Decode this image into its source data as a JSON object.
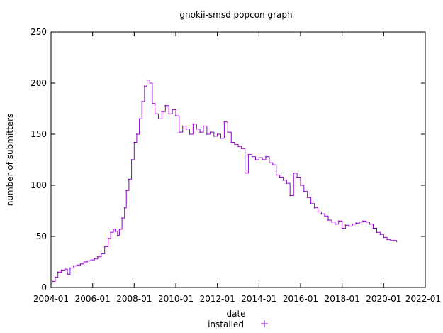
{
  "chart_data": {
    "type": "line",
    "title": "gnokii-smsd popcon graph",
    "xlabel": "date",
    "ylabel": "number of submitters",
    "x_tick_labels": [
      "2004-01",
      "2006-01",
      "2008-01",
      "2010-01",
      "2012-01",
      "2014-01",
      "2016-01",
      "2018-01",
      "2020-01",
      "2022-01"
    ],
    "y_tick_labels": [
      "0",
      "50",
      "100",
      "150",
      "200",
      "250"
    ],
    "xlim": [
      "2004-01-01",
      "2022-01-01"
    ],
    "ylim": [
      0,
      250
    ],
    "grid": false,
    "legend_position": "bottom-center",
    "series": [
      {
        "name": "installed",
        "color": "#9400d3",
        "points": [
          [
            "2004-02-01",
            6
          ],
          [
            "2004-03-15",
            10
          ],
          [
            "2004-05-01",
            15
          ],
          [
            "2004-07-01",
            17
          ],
          [
            "2004-09-01",
            18
          ],
          [
            "2004-10-15",
            13
          ],
          [
            "2004-12-01",
            19
          ],
          [
            "2005-02-01",
            21
          ],
          [
            "2005-04-01",
            22
          ],
          [
            "2005-06-01",
            23
          ],
          [
            "2005-08-01",
            25
          ],
          [
            "2005-10-01",
            26
          ],
          [
            "2005-12-01",
            27
          ],
          [
            "2006-02-01",
            28
          ],
          [
            "2006-04-01",
            30
          ],
          [
            "2006-06-01",
            33
          ],
          [
            "2006-08-01",
            40
          ],
          [
            "2006-10-01",
            48
          ],
          [
            "2006-11-15",
            54
          ],
          [
            "2007-01-01",
            57
          ],
          [
            "2007-02-01",
            55
          ],
          [
            "2007-03-15",
            51
          ],
          [
            "2007-04-15",
            57
          ],
          [
            "2007-06-01",
            68
          ],
          [
            "2007-07-15",
            78
          ],
          [
            "2007-08-15",
            95
          ],
          [
            "2007-10-01",
            106
          ],
          [
            "2007-11-15",
            125
          ],
          [
            "2008-01-01",
            142
          ],
          [
            "2008-02-15",
            150
          ],
          [
            "2008-04-01",
            165
          ],
          [
            "2008-05-15",
            182
          ],
          [
            "2008-07-01",
            197
          ],
          [
            "2008-08-15",
            203
          ],
          [
            "2008-10-01",
            200
          ],
          [
            "2008-11-15",
            180
          ],
          [
            "2009-01-01",
            170
          ],
          [
            "2009-03-01",
            165
          ],
          [
            "2009-05-01",
            172
          ],
          [
            "2009-07-01",
            178
          ],
          [
            "2009-09-01",
            170
          ],
          [
            "2009-11-01",
            174
          ],
          [
            "2010-01-01",
            168
          ],
          [
            "2010-03-01",
            152
          ],
          [
            "2010-05-01",
            158
          ],
          [
            "2010-07-01",
            155
          ],
          [
            "2010-09-01",
            150
          ],
          [
            "2010-11-01",
            160
          ],
          [
            "2011-01-01",
            155
          ],
          [
            "2011-03-01",
            152
          ],
          [
            "2011-05-01",
            158
          ],
          [
            "2011-07-01",
            150
          ],
          [
            "2011-09-01",
            152
          ],
          [
            "2011-11-01",
            148
          ],
          [
            "2012-01-01",
            150
          ],
          [
            "2012-03-01",
            146
          ],
          [
            "2012-05-01",
            162
          ],
          [
            "2012-07-01",
            152
          ],
          [
            "2012-09-01",
            142
          ],
          [
            "2012-11-01",
            140
          ],
          [
            "2013-01-01",
            138
          ],
          [
            "2013-03-01",
            136
          ],
          [
            "2013-05-01",
            112
          ],
          [
            "2013-07-01",
            130
          ],
          [
            "2013-09-01",
            128
          ],
          [
            "2013-11-01",
            125
          ],
          [
            "2014-01-01",
            127
          ],
          [
            "2014-03-01",
            125
          ],
          [
            "2014-05-01",
            128
          ],
          [
            "2014-07-01",
            122
          ],
          [
            "2014-09-01",
            120
          ],
          [
            "2014-11-01",
            110
          ],
          [
            "2015-01-01",
            108
          ],
          [
            "2015-03-01",
            105
          ],
          [
            "2015-05-01",
            102
          ],
          [
            "2015-07-01",
            90
          ],
          [
            "2015-09-01",
            112
          ],
          [
            "2015-11-01",
            108
          ],
          [
            "2016-01-01",
            100
          ],
          [
            "2016-03-01",
            94
          ],
          [
            "2016-05-01",
            88
          ],
          [
            "2016-07-01",
            82
          ],
          [
            "2016-09-01",
            78
          ],
          [
            "2016-11-01",
            74
          ],
          [
            "2017-01-01",
            72
          ],
          [
            "2017-03-01",
            70
          ],
          [
            "2017-05-01",
            66
          ],
          [
            "2017-07-01",
            64
          ],
          [
            "2017-09-01",
            62
          ],
          [
            "2017-11-01",
            65
          ],
          [
            "2018-01-01",
            58
          ],
          [
            "2018-03-01",
            61
          ],
          [
            "2018-05-01",
            60
          ],
          [
            "2018-07-01",
            62
          ],
          [
            "2018-09-01",
            63
          ],
          [
            "2018-11-01",
            64
          ],
          [
            "2019-01-01",
            65
          ],
          [
            "2019-03-01",
            64
          ],
          [
            "2019-05-01",
            62
          ],
          [
            "2019-07-01",
            58
          ],
          [
            "2019-09-01",
            54
          ],
          [
            "2019-11-01",
            52
          ],
          [
            "2020-01-01",
            49
          ],
          [
            "2020-03-01",
            47
          ],
          [
            "2020-05-01",
            46
          ],
          [
            "2020-07-01",
            46
          ],
          [
            "2020-08-15",
            45
          ]
        ]
      }
    ]
  }
}
